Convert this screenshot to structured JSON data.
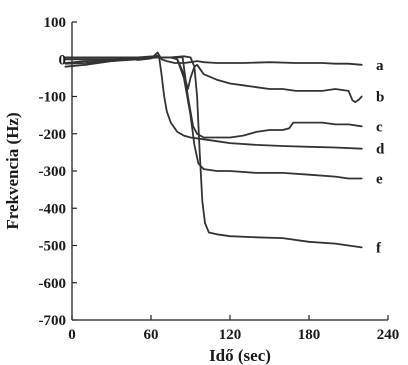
{
  "chart_data": {
    "type": "line",
    "title": "",
    "xlabel": "Idő (sec)",
    "ylabel": "Frekvencia (Hz)",
    "xlim": [
      0,
      240
    ],
    "ylim": [
      -700,
      100
    ],
    "xticks": [
      0,
      60,
      120,
      180,
      240
    ],
    "yticks": [
      100,
      0,
      -100,
      -200,
      -300,
      -400,
      -500,
      -600,
      -700
    ],
    "xtick_labels": [
      "0",
      "60",
      "120",
      "180",
      "240"
    ],
    "ytick_labels": [
      "100",
      "0",
      "-100",
      "-200",
      "-300",
      "-400",
      "-500",
      "-600",
      "-700"
    ],
    "grid": false,
    "line_color": "#333333",
    "series": [
      {
        "name": "a",
        "x": [
          -5,
          10,
          30,
          40,
          50,
          60,
          65,
          68,
          72,
          78,
          85,
          90,
          95,
          100,
          110,
          130,
          150,
          170,
          190,
          200,
          210,
          220
        ],
        "y": [
          -10,
          -5,
          -4,
          5,
          -2,
          2,
          18,
          0,
          -5,
          -10,
          -10,
          -8,
          -5,
          -8,
          -10,
          -10,
          -8,
          -10,
          -10,
          -12,
          -12,
          -15
        ]
      },
      {
        "name": "b",
        "x": [
          -5,
          10,
          30,
          50,
          65,
          75,
          80,
          85,
          88,
          90,
          93,
          95,
          100,
          110,
          120,
          130,
          140,
          150,
          160,
          170,
          180,
          190,
          200,
          210,
          213,
          215,
          218,
          220
        ],
        "y": [
          0,
          0,
          0,
          2,
          5,
          5,
          0,
          -40,
          -80,
          -50,
          -20,
          -15,
          -40,
          -55,
          -65,
          -70,
          -75,
          -80,
          -80,
          -85,
          -85,
          -85,
          -80,
          -85,
          -110,
          -115,
          -108,
          -100
        ]
      },
      {
        "name": "c",
        "x": [
          -5,
          10,
          30,
          50,
          65,
          72,
          78,
          84,
          88,
          92,
          95,
          100,
          110,
          120,
          130,
          140,
          150,
          160,
          165,
          168,
          180,
          190,
          200,
          210,
          220
        ],
        "y": [
          5,
          5,
          5,
          5,
          5,
          5,
          5,
          5,
          -100,
          -180,
          -200,
          -210,
          -210,
          -210,
          -205,
          -195,
          -190,
          -190,
          -185,
          -170,
          -170,
          -170,
          -175,
          -175,
          -180
        ]
      },
      {
        "name": "d",
        "x": [
          -5,
          10,
          30,
          50,
          62,
          66,
          68,
          70,
          72,
          75,
          80,
          85,
          90,
          100,
          110,
          120,
          140,
          160,
          180,
          200,
          220
        ],
        "y": [
          5,
          5,
          5,
          5,
          8,
          10,
          -40,
          -100,
          -140,
          -170,
          -195,
          -205,
          -210,
          -215,
          -220,
          -225,
          -230,
          -233,
          -235,
          -237,
          -240
        ]
      },
      {
        "name": "e",
        "x": [
          -5,
          10,
          30,
          50,
          65,
          75,
          80,
          85,
          90,
          93,
          96,
          100,
          110,
          120,
          140,
          160,
          180,
          200,
          210,
          220
        ],
        "y": [
          -20,
          -15,
          -5,
          2,
          5,
          5,
          0,
          -50,
          -150,
          -230,
          -280,
          -295,
          -300,
          -300,
          -305,
          -305,
          -310,
          -315,
          -320,
          -320
        ]
      },
      {
        "name": "f",
        "x": [
          -5,
          10,
          30,
          50,
          65,
          75,
          85,
          90,
          93,
          95,
          97,
          99,
          101,
          104,
          110,
          120,
          140,
          160,
          180,
          200,
          210,
          220
        ],
        "y": [
          -12,
          -10,
          -5,
          0,
          5,
          5,
          8,
          5,
          -20,
          -100,
          -250,
          -380,
          -440,
          -465,
          -470,
          -475,
          -478,
          -480,
          -490,
          -495,
          -500,
          -505
        ]
      }
    ]
  }
}
